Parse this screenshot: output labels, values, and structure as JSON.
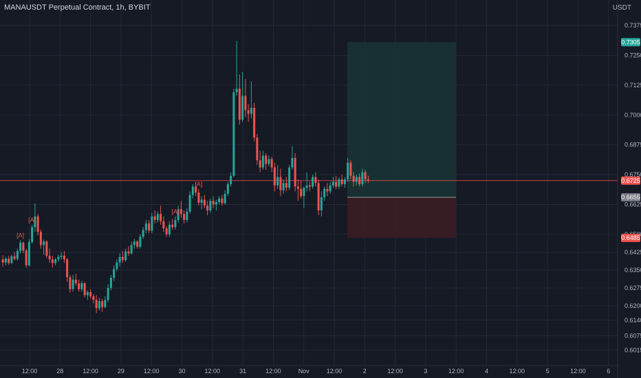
{
  "header": {
    "symbol_title": "MANAUSDT Perpetual Contract, 1h, BYBIT",
    "quote_unit": "USDT"
  },
  "colors": {
    "background": "#161a25",
    "grid": "#242836",
    "up": "#26a69a",
    "down": "#ef5350",
    "target_zone": "#1a3334",
    "stop_zone": "#3b1d25",
    "price_line": "#ef5350",
    "entry_badge": "#787b86"
  },
  "chart_data": {
    "type": "candlestick",
    "y_axis": {
      "range": [
        0.599,
        0.745
      ],
      "ticks": [
        "0.7375",
        "0.7250",
        "0.7125",
        "0.7000",
        "0.6875",
        "0.6750",
        "0.6625",
        "0.6500",
        "0.6425",
        "0.6350",
        "0.6275",
        "0.6200",
        "0.6140",
        "0.6075",
        "0.6015"
      ]
    },
    "x_axis": {
      "labels": [
        "12:00",
        "28",
        "12:00",
        "29",
        "12:00",
        "30",
        "12:00",
        "31",
        "12:00",
        "Nov",
        "12:00",
        "2",
        "12:00",
        "3",
        "12:00",
        "4",
        "12:00",
        "5",
        "12:00",
        "6"
      ]
    },
    "price_badges": [
      {
        "name": "take-profit",
        "value": "0.7305",
        "color": "#26a69a"
      },
      {
        "name": "current-price",
        "value": "0.6725",
        "color": "#ef5350"
      },
      {
        "name": "entry",
        "value": "0.6655",
        "color": "#787b86"
      },
      {
        "name": "stop-loss",
        "value": "0.6485",
        "color": "#ef5350"
      }
    ],
    "position": {
      "type": "long",
      "entry": 0.6655,
      "take_profit": 0.7305,
      "stop_loss": 0.6485
    },
    "current_price": 0.6725,
    "annotations": [
      {
        "text": "[A]",
        "candle": 6
      },
      {
        "text": "[A]",
        "candle": 10
      },
      {
        "text": "[A]",
        "candle": 59
      },
      {
        "text": "[A]",
        "candle": 67
      }
    ],
    "candles": [
      [
        0.6395,
        0.6412,
        0.6365,
        0.6382
      ],
      [
        0.6382,
        0.6405,
        0.637,
        0.6398
      ],
      [
        0.6398,
        0.641,
        0.6372,
        0.638
      ],
      [
        0.638,
        0.6415,
        0.6375,
        0.6408
      ],
      [
        0.6408,
        0.6425,
        0.639,
        0.6397
      ],
      [
        0.6397,
        0.644,
        0.639,
        0.643
      ],
      [
        0.643,
        0.6475,
        0.642,
        0.6465
      ],
      [
        0.6465,
        0.647,
        0.642,
        0.6432
      ],
      [
        0.6432,
        0.644,
        0.636,
        0.637
      ],
      [
        0.637,
        0.648,
        0.6365,
        0.6468
      ],
      [
        0.6468,
        0.654,
        0.646,
        0.653
      ],
      [
        0.653,
        0.663,
        0.651,
        0.6575
      ],
      [
        0.6575,
        0.6585,
        0.6495,
        0.651
      ],
      [
        0.651,
        0.652,
        0.644,
        0.6455
      ],
      [
        0.6455,
        0.6478,
        0.6415,
        0.647
      ],
      [
        0.647,
        0.6475,
        0.64,
        0.641
      ],
      [
        0.641,
        0.644,
        0.638,
        0.6395
      ],
      [
        0.6395,
        0.641,
        0.636,
        0.638
      ],
      [
        0.638,
        0.64,
        0.637,
        0.6395
      ],
      [
        0.6395,
        0.6415,
        0.6385,
        0.6405
      ],
      [
        0.6405,
        0.6425,
        0.6395,
        0.641
      ],
      [
        0.641,
        0.643,
        0.638,
        0.6395
      ],
      [
        0.6395,
        0.64,
        0.63,
        0.632
      ],
      [
        0.632,
        0.633,
        0.6255,
        0.627
      ],
      [
        0.627,
        0.633,
        0.626,
        0.631
      ],
      [
        0.631,
        0.6335,
        0.6285,
        0.6295
      ],
      [
        0.6295,
        0.631,
        0.626,
        0.627
      ],
      [
        0.627,
        0.6305,
        0.626,
        0.6295
      ],
      [
        0.6295,
        0.63,
        0.6235,
        0.6245
      ],
      [
        0.6245,
        0.6265,
        0.6225,
        0.6258
      ],
      [
        0.6258,
        0.627,
        0.623,
        0.624
      ],
      [
        0.624,
        0.625,
        0.621,
        0.6225
      ],
      [
        0.6225,
        0.6245,
        0.617,
        0.619
      ],
      [
        0.619,
        0.6235,
        0.618,
        0.622
      ],
      [
        0.622,
        0.623,
        0.6175,
        0.6195
      ],
      [
        0.6195,
        0.624,
        0.619,
        0.6225
      ],
      [
        0.6225,
        0.629,
        0.6215,
        0.6275
      ],
      [
        0.6275,
        0.633,
        0.6265,
        0.6318
      ],
      [
        0.6318,
        0.637,
        0.6305,
        0.6355
      ],
      [
        0.6355,
        0.6395,
        0.6345,
        0.6382
      ],
      [
        0.6382,
        0.642,
        0.6365,
        0.6405
      ],
      [
        0.6405,
        0.643,
        0.638,
        0.6392
      ],
      [
        0.6392,
        0.644,
        0.6385,
        0.6428
      ],
      [
        0.6428,
        0.645,
        0.641,
        0.642
      ],
      [
        0.642,
        0.647,
        0.6415,
        0.6455
      ],
      [
        0.6455,
        0.648,
        0.644,
        0.647
      ],
      [
        0.647,
        0.6475,
        0.644,
        0.6448
      ],
      [
        0.6448,
        0.65,
        0.644,
        0.649
      ],
      [
        0.649,
        0.653,
        0.648,
        0.6518
      ],
      [
        0.6518,
        0.656,
        0.6505,
        0.6545
      ],
      [
        0.6545,
        0.656,
        0.6505,
        0.6515
      ],
      [
        0.6515,
        0.659,
        0.6505,
        0.6575
      ],
      [
        0.6575,
        0.66,
        0.6545,
        0.656
      ],
      [
        0.656,
        0.6595,
        0.655,
        0.6585
      ],
      [
        0.6585,
        0.662,
        0.654,
        0.6555
      ],
      [
        0.6555,
        0.6575,
        0.651,
        0.6525
      ],
      [
        0.6525,
        0.6535,
        0.649,
        0.65
      ],
      [
        0.65,
        0.6555,
        0.649,
        0.654
      ],
      [
        0.654,
        0.6565,
        0.652,
        0.653
      ],
      [
        0.653,
        0.6575,
        0.652,
        0.656
      ],
      [
        0.656,
        0.662,
        0.655,
        0.6605
      ],
      [
        0.6605,
        0.664,
        0.657,
        0.6585
      ],
      [
        0.6585,
        0.66,
        0.6545,
        0.656
      ],
      [
        0.656,
        0.661,
        0.655,
        0.6595
      ],
      [
        0.6595,
        0.668,
        0.6585,
        0.6665
      ],
      [
        0.6665,
        0.671,
        0.665,
        0.67
      ],
      [
        0.67,
        0.672,
        0.666,
        0.6675
      ],
      [
        0.6675,
        0.669,
        0.662,
        0.6632
      ],
      [
        0.6632,
        0.666,
        0.6605,
        0.6645
      ],
      [
        0.6645,
        0.6665,
        0.661,
        0.662
      ],
      [
        0.662,
        0.664,
        0.658,
        0.66
      ],
      [
        0.66,
        0.665,
        0.659,
        0.664
      ],
      [
        0.664,
        0.666,
        0.661,
        0.6625
      ],
      [
        0.6625,
        0.6645,
        0.66,
        0.6635
      ],
      [
        0.6635,
        0.666,
        0.6625,
        0.665
      ],
      [
        0.665,
        0.6665,
        0.662,
        0.663
      ],
      [
        0.663,
        0.6685,
        0.6625,
        0.667
      ],
      [
        0.667,
        0.672,
        0.666,
        0.671
      ],
      [
        0.671,
        0.676,
        0.67,
        0.6745
      ],
      [
        0.6745,
        0.711,
        0.674,
        0.7095
      ],
      [
        0.7095,
        0.731,
        0.708,
        0.711
      ],
      [
        0.711,
        0.717,
        0.696,
        0.698
      ],
      [
        0.698,
        0.718,
        0.697,
        0.708
      ],
      [
        0.708,
        0.715,
        0.699,
        0.702
      ],
      [
        0.702,
        0.7045,
        0.697,
        0.7005
      ],
      [
        0.7005,
        0.714,
        0.6985,
        0.703
      ],
      [
        0.703,
        0.705,
        0.689,
        0.6905
      ],
      [
        0.6905,
        0.692,
        0.679,
        0.681
      ],
      [
        0.681,
        0.685,
        0.676,
        0.678
      ],
      [
        0.678,
        0.685,
        0.677,
        0.683
      ],
      [
        0.683,
        0.684,
        0.677,
        0.6795
      ],
      [
        0.6795,
        0.683,
        0.6785,
        0.6815
      ],
      [
        0.6815,
        0.6825,
        0.676,
        0.678
      ],
      [
        0.678,
        0.68,
        0.668,
        0.6705
      ],
      [
        0.6705,
        0.679,
        0.669,
        0.674
      ],
      [
        0.674,
        0.6775,
        0.666,
        0.6685
      ],
      [
        0.6685,
        0.673,
        0.667,
        0.6715
      ],
      [
        0.6715,
        0.674,
        0.668,
        0.6695
      ],
      [
        0.6695,
        0.679,
        0.6685,
        0.678
      ],
      [
        0.678,
        0.687,
        0.677,
        0.682
      ],
      [
        0.682,
        0.684,
        0.668,
        0.67
      ],
      [
        0.67,
        0.673,
        0.664,
        0.669
      ],
      [
        0.669,
        0.6725,
        0.665,
        0.666
      ],
      [
        0.666,
        0.67,
        0.661,
        0.6695
      ],
      [
        0.6695,
        0.676,
        0.668,
        0.6705
      ],
      [
        0.6705,
        0.672,
        0.668,
        0.67
      ],
      [
        0.67,
        0.675,
        0.669,
        0.674
      ],
      [
        0.674,
        0.676,
        0.67,
        0.6715
      ],
      [
        0.6715,
        0.673,
        0.658,
        0.66
      ],
      [
        0.66,
        0.668,
        0.6575,
        0.6655
      ],
      [
        0.6655,
        0.67,
        0.664,
        0.669
      ],
      [
        0.669,
        0.6715,
        0.666,
        0.668
      ],
      [
        0.668,
        0.672,
        0.667,
        0.6705
      ],
      [
        0.6705,
        0.674,
        0.6695,
        0.672
      ],
      [
        0.672,
        0.6745,
        0.669,
        0.67
      ],
      [
        0.67,
        0.674,
        0.669,
        0.673
      ],
      [
        0.673,
        0.675,
        0.67,
        0.671
      ],
      [
        0.671,
        0.674,
        0.6695,
        0.673
      ],
      [
        0.673,
        0.682,
        0.672,
        0.68
      ],
      [
        0.68,
        0.681,
        0.673,
        0.6745
      ],
      [
        0.6745,
        0.676,
        0.67,
        0.672
      ],
      [
        0.672,
        0.675,
        0.6705,
        0.674
      ],
      [
        0.674,
        0.6755,
        0.67,
        0.671
      ],
      [
        0.671,
        0.6775,
        0.67,
        0.676
      ],
      [
        0.676,
        0.677,
        0.6715,
        0.673
      ],
      [
        0.673,
        0.6745,
        0.6715,
        0.6725
      ]
    ]
  }
}
